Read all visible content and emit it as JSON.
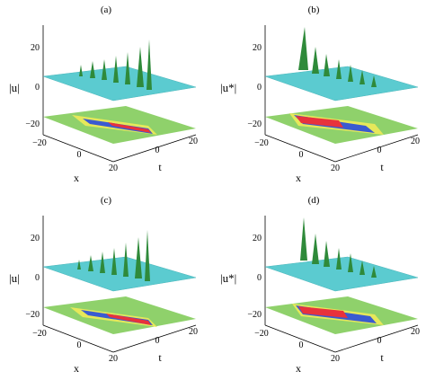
{
  "figure": {
    "panels": [
      {
        "label": "(a)",
        "zlabel": "|u|",
        "xlabel": "x",
        "tlabel": "t",
        "zticks": [
          "20",
          "0",
          "−20"
        ],
        "xticks": [
          "−20",
          "0",
          "20"
        ],
        "tticks": [
          "0",
          "20"
        ]
      },
      {
        "label": "(b)",
        "zlabel": "|u*|",
        "xlabel": "x",
        "tlabel": "t",
        "zticks": [
          "20",
          "0",
          "−20"
        ],
        "xticks": [
          "−20",
          "0",
          "20"
        ],
        "tticks": [
          "0",
          "20"
        ]
      },
      {
        "label": "(c)",
        "zlabel": "|u|",
        "xlabel": "x",
        "tlabel": "t",
        "zticks": [
          "20",
          "0",
          "−20"
        ],
        "xticks": [
          "−20",
          "0",
          "20"
        ],
        "tticks": [
          "0",
          "20"
        ]
      },
      {
        "label": "(d)",
        "zlabel": "|u*|",
        "xlabel": "x",
        "tlabel": "t",
        "zticks": [
          "20",
          "0",
          "−20"
        ],
        "xticks": [
          "−20",
          "0",
          "20"
        ],
        "tticks": [
          "0",
          "20"
        ]
      }
    ],
    "colors": {
      "surface": "#5bcbd0",
      "peaks": "#2f8a3a",
      "contour_high": "#e8323c",
      "contour_mid": "#3a5bd0",
      "contour_low": "#e6e85a",
      "contour_base": "#8fd16b"
    }
  }
}
